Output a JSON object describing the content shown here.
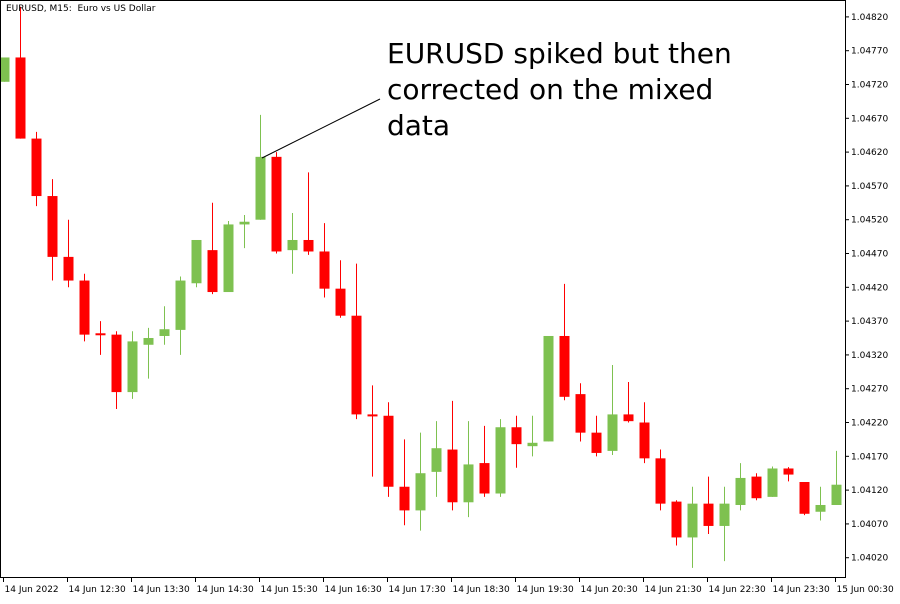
{
  "header": {
    "symbol": "EURUSD, M15:",
    "description": "Euro vs US Dollar"
  },
  "annotation": {
    "lines": [
      "EURUSD spiked but then",
      "corrected on the mixed",
      "data"
    ]
  },
  "colors": {
    "bull": "#7ec150",
    "bear": "#ff0000",
    "frame": "#000000",
    "background": "#ffffff"
  },
  "chart_data": {
    "type": "candlestick",
    "title": "",
    "ylim": [
      1.0399,
      1.04845
    ],
    "y_ticks": [
      "1.04020",
      "1.04070",
      "1.04120",
      "1.04170",
      "1.04220",
      "1.04270",
      "1.04320",
      "1.04370",
      "1.04420",
      "1.04470",
      "1.04520",
      "1.04570",
      "1.04620",
      "1.04670",
      "1.04720",
      "1.04770",
      "1.04820"
    ],
    "x_labels": [
      "14 Jun 2022",
      "14 Jun 12:30",
      "14 Jun 13:30",
      "14 Jun 14:30",
      "14 Jun 15:30",
      "14 Jun 16:30",
      "14 Jun 17:30",
      "14 Jun 18:30",
      "14 Jun 19:30",
      "14 Jun 20:30",
      "14 Jun 21:30",
      "14 Jun 22:30",
      "14 Jun 23:30",
      "15 Jun 00:30"
    ],
    "x_label_every": 4,
    "candles": [
      {
        "o": 1.04724,
        "h": 1.0476,
        "l": 1.04724,
        "c": 1.0476
      },
      {
        "o": 1.0476,
        "h": 1.04835,
        "l": 1.0464,
        "c": 1.0464
      },
      {
        "o": 1.0464,
        "h": 1.0465,
        "l": 1.0454,
        "c": 1.04555
      },
      {
        "o": 1.04555,
        "h": 1.0458,
        "l": 1.0443,
        "c": 1.04465
      },
      {
        "o": 1.04465,
        "h": 1.0452,
        "l": 1.0442,
        "c": 1.0443
      },
      {
        "o": 1.0443,
        "h": 1.0444,
        "l": 1.0434,
        "c": 1.0435
      },
      {
        "o": 1.04352,
        "h": 1.0437,
        "l": 1.0432,
        "c": 1.0435
      },
      {
        "o": 1.0435,
        "h": 1.04355,
        "l": 1.0424,
        "c": 1.04265
      },
      {
        "o": 1.04265,
        "h": 1.04355,
        "l": 1.04255,
        "c": 1.0434
      },
      {
        "o": 1.04335,
        "h": 1.0436,
        "l": 1.04285,
        "c": 1.04345
      },
      {
        "o": 1.04348,
        "h": 1.04392,
        "l": 1.04335,
        "c": 1.04358
      },
      {
        "o": 1.04357,
        "h": 1.04436,
        "l": 1.0432,
        "c": 1.0443
      },
      {
        "o": 1.04426,
        "h": 1.0449,
        "l": 1.0442,
        "c": 1.0449
      },
      {
        "o": 1.04475,
        "h": 1.04545,
        "l": 1.0441,
        "c": 1.04413
      },
      {
        "o": 1.04413,
        "h": 1.04518,
        "l": 1.04413,
        "c": 1.04513
      },
      {
        "o": 1.04513,
        "h": 1.04527,
        "l": 1.04478,
        "c": 1.04517
      },
      {
        "o": 1.0452,
        "h": 1.04675,
        "l": 1.0452,
        "c": 1.04613
      },
      {
        "o": 1.04613,
        "h": 1.0462,
        "l": 1.0447,
        "c": 1.04473
      },
      {
        "o": 1.04475,
        "h": 1.0453,
        "l": 1.0444,
        "c": 1.0449
      },
      {
        "o": 1.0449,
        "h": 1.0459,
        "l": 1.04468,
        "c": 1.04473
      },
      {
        "o": 1.04473,
        "h": 1.04515,
        "l": 1.04405,
        "c": 1.04418
      },
      {
        "o": 1.04418,
        "h": 1.0446,
        "l": 1.04375,
        "c": 1.04378
      },
      {
        "o": 1.04378,
        "h": 1.04455,
        "l": 1.04225,
        "c": 1.04232
      },
      {
        "o": 1.04232,
        "h": 1.04275,
        "l": 1.0414,
        "c": 1.0423
      },
      {
        "o": 1.0423,
        "h": 1.0425,
        "l": 1.0411,
        "c": 1.04125
      },
      {
        "o": 1.04125,
        "h": 1.04195,
        "l": 1.04068,
        "c": 1.0409
      },
      {
        "o": 1.0409,
        "h": 1.04205,
        "l": 1.0406,
        "c": 1.04145
      },
      {
        "o": 1.04147,
        "h": 1.04222,
        "l": 1.0411,
        "c": 1.04182
      },
      {
        "o": 1.0418,
        "h": 1.04252,
        "l": 1.0409,
        "c": 1.04102
      },
      {
        "o": 1.04102,
        "h": 1.04222,
        "l": 1.0408,
        "c": 1.04158
      },
      {
        "o": 1.0416,
        "h": 1.04215,
        "l": 1.0411,
        "c": 1.04115
      },
      {
        "o": 1.04115,
        "h": 1.04225,
        "l": 1.0411,
        "c": 1.04213
      },
      {
        "o": 1.04213,
        "h": 1.0423,
        "l": 1.04153,
        "c": 1.04188
      },
      {
        "o": 1.04185,
        "h": 1.0423,
        "l": 1.0417,
        "c": 1.0419
      },
      {
        "o": 1.04192,
        "h": 1.04348,
        "l": 1.04192,
        "c": 1.04348
      },
      {
        "o": 1.04348,
        "h": 1.04425,
        "l": 1.04253,
        "c": 1.04258
      },
      {
        "o": 1.04262,
        "h": 1.04278,
        "l": 1.04192,
        "c": 1.04205
      },
      {
        "o": 1.04205,
        "h": 1.0423,
        "l": 1.0417,
        "c": 1.04175
      },
      {
        "o": 1.04178,
        "h": 1.04305,
        "l": 1.04172,
        "c": 1.04232
      },
      {
        "o": 1.04232,
        "h": 1.0428,
        "l": 1.0422,
        "c": 1.04222
      },
      {
        "o": 1.0422,
        "h": 1.0425,
        "l": 1.0416,
        "c": 1.04167
      },
      {
        "o": 1.04167,
        "h": 1.0418,
        "l": 1.0409,
        "c": 1.041
      },
      {
        "o": 1.04103,
        "h": 1.04105,
        "l": 1.04038,
        "c": 1.0405
      },
      {
        "o": 1.0405,
        "h": 1.04125,
        "l": 1.04005,
        "c": 1.041
      },
      {
        "o": 1.041,
        "h": 1.0414,
        "l": 1.04055,
        "c": 1.04067
      },
      {
        "o": 1.04067,
        "h": 1.04125,
        "l": 1.04015,
        "c": 1.041
      },
      {
        "o": 1.04098,
        "h": 1.0416,
        "l": 1.0409,
        "c": 1.04138
      },
      {
        "o": 1.0414,
        "h": 1.04145,
        "l": 1.04105,
        "c": 1.04108
      },
      {
        "o": 1.0411,
        "h": 1.04155,
        "l": 1.0411,
        "c": 1.04152
      },
      {
        "o": 1.04152,
        "h": 1.04154,
        "l": 1.04133,
        "c": 1.04143
      },
      {
        "o": 1.04132,
        "h": 1.04132,
        "l": 1.04083,
        "c": 1.04085
      },
      {
        "o": 1.04088,
        "h": 1.04125,
        "l": 1.04075,
        "c": 1.04098
      },
      {
        "o": 1.04098,
        "h": 1.04178,
        "l": 1.04098,
        "c": 1.04128
      }
    ]
  }
}
